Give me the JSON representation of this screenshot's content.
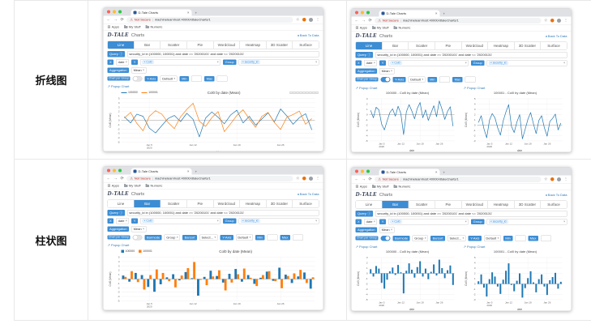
{
  "page": {
    "row_labels": [
      "折线图",
      "柱状图"
    ]
  },
  "browser": {
    "tab_title": "D-Tale Charts",
    "tab_close": "×",
    "new_tab": "+",
    "back_icon": "←",
    "forward_icon": "→",
    "reload_icon": "⟳",
    "warning_icon": "⚠",
    "not_secure": "Not Secure",
    "url_separator": "|",
    "url": "machinelearnhost:40000/dtale/charts/1",
    "star_icon": "☆",
    "menu_icon": "⋮",
    "apps_icon": "⊞",
    "bookmarks": [
      "Apps",
      "My Stuff",
      "Numeric"
    ]
  },
  "app": {
    "logo": "D-TALE",
    "page_title": "Charts",
    "back_link": "◂ Back To Data",
    "tabs": [
      "Line",
      "Bar",
      "Scatter",
      "Pie",
      "Wordcloud",
      "Heatmap",
      "3D Scatter",
      "Surface"
    ],
    "query_label": "Query",
    "query_info_icon": "ⓘ",
    "query_value": "security_id in (100000, 100001) and date >= '20200101' and date <= '20200131'",
    "x_label": "X",
    "x_value": "date",
    "y_label": "Y",
    "y_token": "× Col0",
    "group_label": "Group",
    "group_token": "× security_id",
    "agg_label": "Aggregation",
    "agg_value": "Mean",
    "chart_per_group_label": "Chart per Group",
    "yaxis_label": "Y-Axis",
    "yaxis_value": "Default",
    "min_label": "Min",
    "min_value": "",
    "max_label": "Max",
    "max_value": "",
    "barmode_label": "Barmode",
    "barmode_value": "Group",
    "barsort_label": "Barsort",
    "barsort_value": "Select...",
    "popup_link": "↗ Popup Chart",
    "caret": "▾"
  },
  "windows": [
    {
      "name": "line-combined",
      "active_tab": 0,
      "chart_per_group": false,
      "bar_controls": false,
      "charts": [
        0
      ],
      "modebar": true
    },
    {
      "name": "line-per-group",
      "active_tab": 0,
      "chart_per_group": true,
      "bar_controls": false,
      "charts": [
        1,
        2
      ],
      "modebar": false
    },
    {
      "name": "bar-combined",
      "active_tab": 1,
      "chart_per_group": false,
      "bar_controls": true,
      "charts": [
        3
      ],
      "modebar": false
    },
    {
      "name": "bar-per-group",
      "active_tab": 1,
      "chart_per_group": true,
      "bar_controls": true,
      "charts": [
        4,
        5
      ],
      "modebar": false
    }
  ],
  "chart_data": {
    "xlabel": "date",
    "ylabel": "Col0 (Mean)",
    "x_dates": [
      "2020-01-01",
      "2020-01-02",
      "2020-01-03",
      "2020-01-04",
      "2020-01-05",
      "2020-01-06",
      "2020-01-07",
      "2020-01-08",
      "2020-01-09",
      "2020-01-10",
      "2020-01-11",
      "2020-01-12",
      "2020-01-13",
      "2020-01-14",
      "2020-01-15",
      "2020-01-16",
      "2020-01-17",
      "2020-01-18",
      "2020-01-19",
      "2020-01-20",
      "2020-01-21",
      "2020-01-22",
      "2020-01-23",
      "2020-01-24",
      "2020-01-25",
      "2020-01-26",
      "2020-01-27",
      "2020-01-28",
      "2020-01-29",
      "2020-01-30",
      "2020-01-31"
    ],
    "x_ticks": [
      {
        "idx": 4,
        "lines": [
          "Jan 5",
          "2020"
        ]
      },
      {
        "idx": 11,
        "lines": [
          "Jan 12"
        ]
      },
      {
        "idx": 18,
        "lines": [
          "Jan 19"
        ]
      },
      {
        "idx": 25,
        "lines": [
          "Jan 26"
        ]
      }
    ],
    "series_values": {
      "100000": [
        0.8,
        -0.6,
        1.4,
        0.9,
        -1.8,
        -2.9,
        -1.2,
        0.4,
        1.1,
        -0.3,
        1.6,
        0.2,
        -3.8,
        0.5,
        1.9,
        0.7,
        -0.8,
        1.2,
        2.3,
        -0.6,
        0.9,
        -1.1,
        0.3,
        1.7,
        -0.4,
        2.6,
        1.0,
        -0.9,
        0.6,
        1.5,
        -2.2
      ],
      "100001": [
        0.5,
        1.8,
        -0.7,
        -2.4,
        0.9,
        2.2,
        1.4,
        -0.5,
        -1.9,
        0.8,
        2.5,
        3.9,
        -0.2,
        -1.4,
        0.6,
        2.0,
        -2.6,
        -0.8,
        1.1,
        2.4,
        0.3,
        -1.6,
        0.9,
        1.8,
        -0.5,
        -2.1,
        0.7,
        1.3,
        2.1,
        -0.9,
        0.4
      ]
    },
    "series_colors": {
      "100000": "#1f77b4",
      "100001": "#ff7f0e"
    },
    "mono_color": "#1f77b4",
    "charts": [
      {
        "type": "line",
        "title": "Col0 by date (Mean)",
        "series": [
          "100000",
          "100001"
        ],
        "legend": true,
        "mono": false
      },
      {
        "type": "line",
        "title": "100000 - Col0 by date (Mean)",
        "series": [
          "100000"
        ],
        "legend": false,
        "mono": true
      },
      {
        "type": "line",
        "title": "100001 - Col0 by date (Mean)",
        "series": [
          "100001"
        ],
        "legend": false,
        "mono": true
      },
      {
        "type": "bar",
        "title": "Col0 by date (Mean)",
        "series": [
          "100000",
          "100001"
        ],
        "legend": true,
        "mono": false
      },
      {
        "type": "bar",
        "title": "100000 - Col0 by date (Mean)",
        "series": [
          "100000"
        ],
        "legend": false,
        "mono": true
      },
      {
        "type": "bar",
        "title": "100001 - Col0 by date (Mean)",
        "series": [
          "100001"
        ],
        "legend": false,
        "mono": true
      }
    ]
  }
}
